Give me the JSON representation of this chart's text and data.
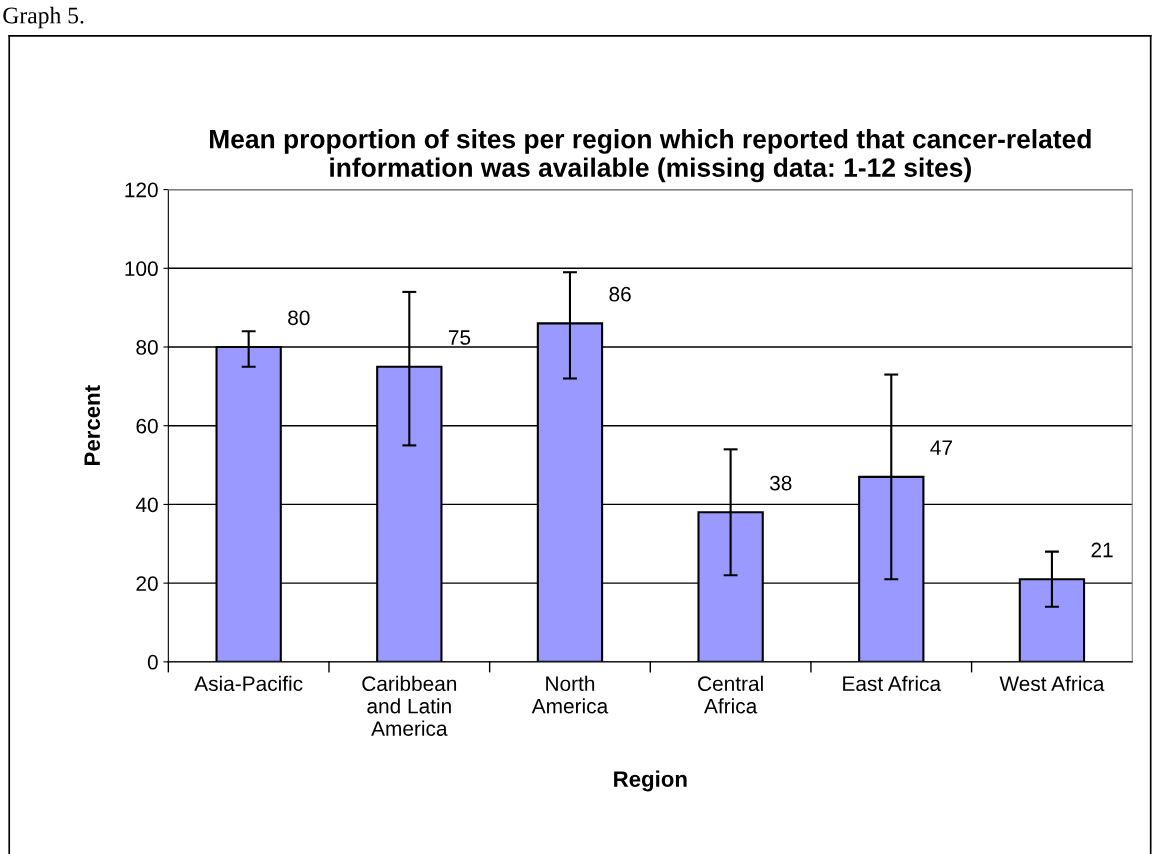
{
  "chart_data": {
    "type": "bar",
    "title": "Mean proportion of sites per region which reported that cancer-related information was available (missing data: 1-12 sites)",
    "xlabel": "Region",
    "ylabel": "Percent",
    "annotations": [
      "Graph 5."
    ],
    "categories": [
      "Asia-Pacific",
      "Caribbean and Latin America",
      "North America",
      "Central Africa",
      "East Africa",
      "West Africa"
    ],
    "values": [
      80,
      75,
      86,
      38,
      47,
      21
    ],
    "errors": [
      [
        75,
        84
      ],
      [
        55,
        94
      ],
      [
        72,
        99
      ],
      [
        22,
        54
      ],
      [
        21,
        73
      ],
      [
        14,
        28
      ]
    ],
    "color": "#9999ff",
    "data_labels": true,
    "ylim": [
      0,
      120
    ],
    "yticks": [
      0,
      20,
      40,
      60,
      80,
      100,
      120
    ],
    "grid": "y",
    "legend": false
  }
}
